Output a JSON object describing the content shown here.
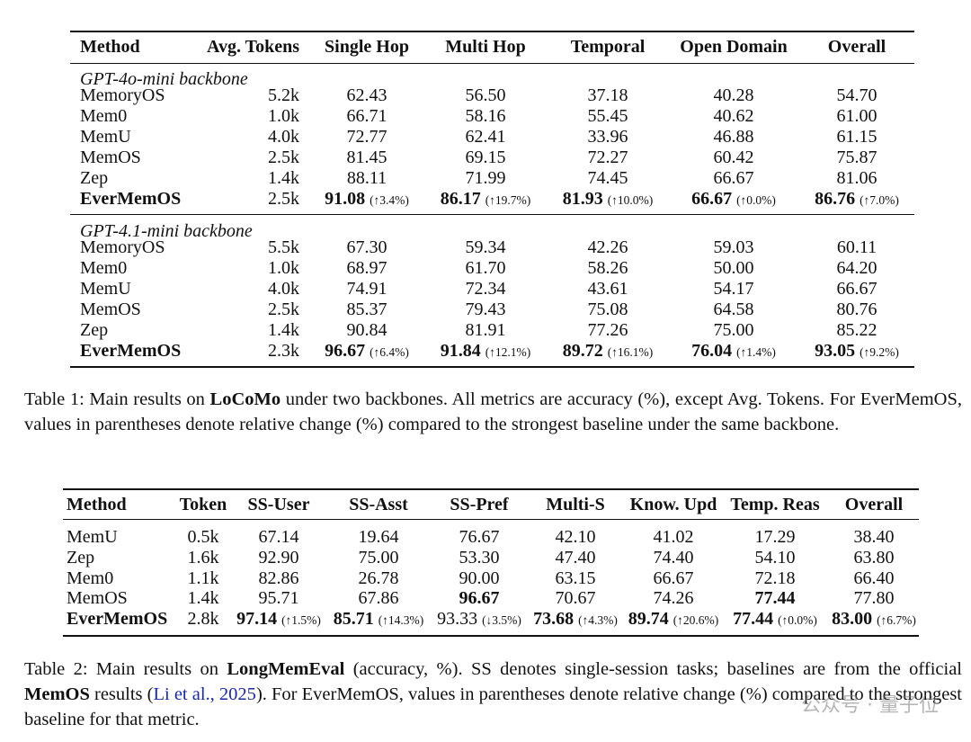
{
  "table1": {
    "header": [
      "Method",
      "Avg. Tokens",
      "Single Hop",
      "Multi Hop",
      "Temporal",
      "Open Domain",
      "Overall"
    ],
    "groups": [
      {
        "label": "GPT-4o-mini backbone",
        "rows": [
          [
            "MemoryOS",
            "5.2k",
            "62.43",
            "56.50",
            "37.18",
            "40.28",
            "54.70"
          ],
          [
            "Mem0",
            "1.0k",
            "66.71",
            "58.16",
            "55.45",
            "40.62",
            "61.00"
          ],
          [
            "MemU",
            "4.0k",
            "72.77",
            "62.41",
            "33.96",
            "46.88",
            "61.15"
          ],
          [
            "MemOS",
            "2.5k",
            "81.45",
            "69.15",
            "72.27",
            "60.42",
            "75.87"
          ],
          [
            "Zep",
            "1.4k",
            "88.11",
            "71.99",
            "74.45",
            "66.67",
            "81.06"
          ],
          [
            {
              "text": "EverMemOS",
              "bold": true
            },
            "2.5k",
            {
              "text": "91.08",
              "change": "(↑3.4%)",
              "bold": true
            },
            {
              "text": "86.17",
              "change": "(↑19.7%)",
              "bold": true
            },
            {
              "text": "81.93",
              "change": "(↑10.0%)",
              "bold": true
            },
            {
              "text": "66.67",
              "change": "(↑0.0%)",
              "bold": true
            },
            {
              "text": "86.76",
              "change": "(↑7.0%)",
              "bold": true
            }
          ]
        ]
      },
      {
        "label": "GPT-4.1-mini backbone",
        "rows": [
          [
            "MemoryOS",
            "5.5k",
            "67.30",
            "59.34",
            "42.26",
            "59.03",
            "60.11"
          ],
          [
            "Mem0",
            "1.0k",
            "68.97",
            "61.70",
            "58.26",
            "50.00",
            "64.20"
          ],
          [
            "MemU",
            "4.0k",
            "74.91",
            "72.34",
            "43.61",
            "54.17",
            "66.67"
          ],
          [
            "MemOS",
            "2.5k",
            "85.37",
            "79.43",
            "75.08",
            "64.58",
            "80.76"
          ],
          [
            "Zep",
            "1.4k",
            "90.84",
            "81.91",
            "77.26",
            "75.00",
            "85.22"
          ],
          [
            {
              "text": "EverMemOS",
              "bold": true
            },
            "2.3k",
            {
              "text": "96.67",
              "change": "(↑6.4%)",
              "bold": true
            },
            {
              "text": "91.84",
              "change": "(↑12.1%)",
              "bold": true
            },
            {
              "text": "89.72",
              "change": "(↑16.1%)",
              "bold": true
            },
            {
              "text": "76.04",
              "change": "(↑1.4%)",
              "bold": true
            },
            {
              "text": "93.05",
              "change": "(↑9.2%)",
              "bold": true
            }
          ]
        ]
      }
    ]
  },
  "caption1": [
    {
      "text": "Table 1: Main results on "
    },
    {
      "text": "LoCoMo",
      "bold": true
    },
    {
      "text": " under two backbones. All metrics are accuracy (%), except Avg. Tokens. For EverMemOS, values in parentheses denote relative change (%) compared to the strongest baseline under the same backbone."
    }
  ],
  "table2": {
    "header": [
      "Method",
      "Token",
      "SS-User",
      "SS-Asst",
      "SS-Pref",
      "Multi-S",
      "Know. Upd",
      "Temp. Reas",
      "Overall"
    ],
    "rows": [
      [
        "MemU",
        "0.5k",
        "67.14",
        "19.64",
        "76.67",
        "42.10",
        "41.02",
        "17.29",
        "38.40"
      ],
      [
        "Zep",
        "1.6k",
        "92.90",
        "75.00",
        "53.30",
        "47.40",
        "74.40",
        "54.10",
        "63.80"
      ],
      [
        "Mem0",
        "1.1k",
        "82.86",
        "26.78",
        "90.00",
        "63.15",
        "66.67",
        "72.18",
        "66.40"
      ],
      [
        "MemOS",
        "1.4k",
        "95.71",
        "67.86",
        {
          "text": "96.67",
          "bold": true
        },
        "70.67",
        "74.26",
        {
          "text": "77.44",
          "bold": true
        },
        "77.80"
      ],
      [
        {
          "text": "EverMemOS",
          "bold": true
        },
        "2.8k",
        {
          "text": "97.14",
          "change": "(↑1.5%)",
          "bold": true
        },
        {
          "text": "85.71",
          "change": "(↑14.3%)",
          "bold": true
        },
        {
          "text": "93.33",
          "change": "(↓3.5%)"
        },
        {
          "text": "73.68",
          "change": "(↑4.3%)",
          "bold": true
        },
        {
          "text": "89.74",
          "change": "(↑20.6%)",
          "bold": true
        },
        {
          "text": "77.44",
          "change": "(↑0.0%)",
          "bold": true
        },
        {
          "text": "83.00",
          "change": "(↑6.7%)",
          "bold": true
        }
      ]
    ]
  },
  "caption2": [
    {
      "text": "Table 2: Main results on "
    },
    {
      "text": "LongMemEval",
      "bold": true
    },
    {
      "text": " (accuracy, %). SS denotes single-session tasks; baselines are from the official "
    },
    {
      "text": "MemOS",
      "bold": true
    },
    {
      "text": " results ("
    },
    {
      "text": "Li et al., 2025",
      "link": true
    },
    {
      "text": "). For EverMemOS, values in parentheses denote relative change (%) compared to the strongest baseline for that metric."
    }
  ],
  "watermark": "公众号 · 量子位"
}
